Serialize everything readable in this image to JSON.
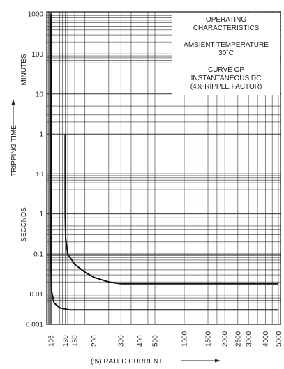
{
  "chart_data": {
    "type": "line",
    "title": "",
    "xlabel": "(%)  RATED CURRENT",
    "ylabel": "TRIPPING TIME",
    "y_unit_upper": "MINUTES",
    "y_unit_lower": "SECONDS",
    "x_tick_labels": [
      "105",
      "130",
      "150",
      "200",
      "300",
      "400",
      "500",
      "1000",
      "1500",
      "2000",
      "2500",
      "3000",
      "4000",
      "5000"
    ],
    "y_tick_labels_minutes": [
      "1000",
      "100",
      "10",
      "1"
    ],
    "y_tick_labels_seconds": [
      "10",
      "1",
      "0.1",
      "0.01",
      "0.001"
    ],
    "annotations": {
      "block1": [
        "OPERATING",
        "CHARACTERISTICS"
      ],
      "block2": [
        "AMBIENT TEMPERATURE",
        "30˚C"
      ],
      "block3": [
        "CURVE OP",
        "INSTANTANEOUS DC",
        "(4% RIPPLE FACTOR)"
      ]
    },
    "series": [
      {
        "values": [
          {
            "x": 130,
            "y_seconds": 60
          },
          {
            "x": 130,
            "y_seconds": 1
          },
          {
            "x": 131,
            "y_seconds": 0.25
          },
          {
            "x": 135,
            "y_seconds": 0.1
          },
          {
            "x": 150,
            "y_seconds": 0.055
          },
          {
            "x": 175,
            "y_seconds": 0.035
          },
          {
            "x": 200,
            "y_seconds": 0.026
          },
          {
            "x": 250,
            "y_seconds": 0.02
          },
          {
            "x": 300,
            "y_seconds": 0.018
          },
          {
            "x": 5000,
            "y_seconds": 0.018
          }
        ]
      },
      {
        "values": [
          {
            "x": 105,
            "y_seconds": 60000
          },
          {
            "x": 105,
            "y_seconds": 0.05
          },
          {
            "x": 106,
            "y_seconds": 0.012
          },
          {
            "x": 110,
            "y_seconds": 0.006
          },
          {
            "x": 120,
            "y_seconds": 0.0045
          },
          {
            "x": 140,
            "y_seconds": 0.004
          },
          {
            "x": 5000,
            "y_seconds": 0.004
          }
        ]
      }
    ],
    "grid": true
  }
}
